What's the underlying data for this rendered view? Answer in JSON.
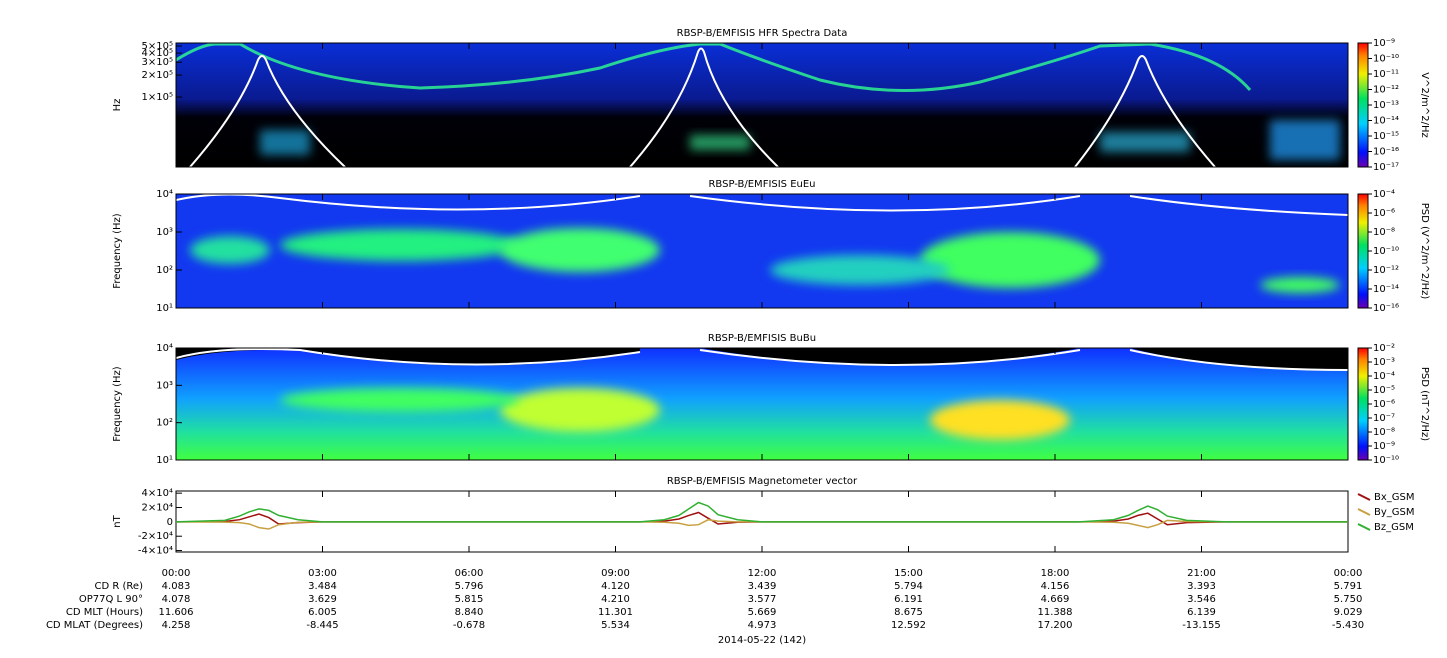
{
  "chart_data": [
    {
      "type": "spectrogram",
      "title": "RBSP-B/EMFISIS  HFR Spectra Data",
      "y_label": "Hz",
      "log_y": true,
      "ylim": [
        11000,
        550000
      ],
      "yticks": [
        {
          "value": 100000,
          "label": "1×10⁵"
        },
        {
          "value": 200000,
          "label": "2×10⁵"
        },
        {
          "value": 300000,
          "label": "3×10⁵"
        },
        {
          "value": 400000,
          "label": "4×10⁵"
        },
        {
          "value": 500000,
          "label": "5×10⁵"
        }
      ],
      "colorbar": {
        "label": "V^2/m^2/Hz",
        "lim": [
          1e-17,
          1e-09
        ],
        "ticks": [
          {
            "value": 1e-17,
            "label": "10⁻¹⁷"
          },
          {
            "value": 1e-16,
            "label": "10⁻¹⁶"
          },
          {
            "value": 1e-15,
            "label": "10⁻¹⁵"
          },
          {
            "value": 1e-14,
            "label": "10⁻¹⁴"
          },
          {
            "value": 1e-13,
            "label": "10⁻¹³"
          },
          {
            "value": 1e-12,
            "label": "10⁻¹²"
          },
          {
            "value": 1e-11,
            "label": "10⁻¹¹"
          },
          {
            "value": 1e-10,
            "label": "10⁻¹⁰"
          },
          {
            "value": 1e-09,
            "label": "10⁻⁹"
          }
        ]
      }
    },
    {
      "type": "spectrogram",
      "title": "RBSP-B/EMFISIS  EuEu",
      "y_label": "Frequency (Hz)",
      "log_y": true,
      "ylim": [
        10,
        10000
      ],
      "yticks": [
        {
          "value": 10,
          "label": "10¹"
        },
        {
          "value": 100,
          "label": "10²"
        },
        {
          "value": 1000,
          "label": "10³"
        },
        {
          "value": 10000,
          "label": "10⁴"
        }
      ],
      "colorbar": {
        "label": "PSD (V^2/m^2/Hz)",
        "lim": [
          1e-16,
          0.0001
        ],
        "ticks": [
          {
            "value": 1e-16,
            "label": "10⁻¹⁶"
          },
          {
            "value": 1e-14,
            "label": "10⁻¹⁴"
          },
          {
            "value": 1e-12,
            "label": "10⁻¹²"
          },
          {
            "value": 1e-10,
            "label": "10⁻¹⁰"
          },
          {
            "value": 1e-08,
            "label": "10⁻⁸"
          },
          {
            "value": 1e-06,
            "label": "10⁻⁶"
          },
          {
            "value": 0.0001,
            "label": "10⁻⁴"
          }
        ]
      }
    },
    {
      "type": "spectrogram",
      "title": "RBSP-B/EMFISIS  BuBu",
      "y_label": "Frequency (Hz)",
      "log_y": true,
      "ylim": [
        10,
        10000
      ],
      "yticks": [
        {
          "value": 10,
          "label": "10¹"
        },
        {
          "value": 100,
          "label": "10²"
        },
        {
          "value": 1000,
          "label": "10³"
        },
        {
          "value": 10000,
          "label": "10⁴"
        }
      ],
      "colorbar": {
        "label": "PSD (nT^2/Hz)",
        "lim": [
          1e-10,
          0.01
        ],
        "ticks": [
          {
            "value": 1e-10,
            "label": "10⁻¹⁰"
          },
          {
            "value": 1e-09,
            "label": "10⁻⁹"
          },
          {
            "value": 1e-08,
            "label": "10⁻⁸"
          },
          {
            "value": 1e-07,
            "label": "10⁻⁷"
          },
          {
            "value": 1e-06,
            "label": "10⁻⁶"
          },
          {
            "value": 1e-05,
            "label": "10⁻⁵"
          },
          {
            "value": 0.0001,
            "label": "10⁻⁴"
          },
          {
            "value": 0.001,
            "label": "10⁻³"
          },
          {
            "value": 0.01,
            "label": "10⁻²"
          }
        ]
      }
    },
    {
      "type": "line",
      "title": "RBSP-B/EMFISIS  Magnetometer vector",
      "y_label": "nT",
      "legend": "right",
      "xlim": [
        0,
        24
      ],
      "xticks": [
        {
          "value": 0,
          "label": "00:00"
        },
        {
          "value": 3,
          "label": "03:00"
        },
        {
          "value": 6,
          "label": "06:00"
        },
        {
          "value": 9,
          "label": "09:00"
        },
        {
          "value": 12,
          "label": "12:00"
        },
        {
          "value": 15,
          "label": "15:00"
        },
        {
          "value": 18,
          "label": "18:00"
        },
        {
          "value": 21,
          "label": "21:00"
        },
        {
          "value": 24,
          "label": "00:00"
        }
      ],
      "ylim": [
        -42000,
        43000
      ],
      "yticks": [
        {
          "value": 40000,
          "label": "4×10⁴"
        },
        {
          "value": 20000,
          "label": "2×10⁴"
        },
        0,
        {
          "value": -20000,
          "label": "-2×10⁴"
        },
        {
          "value": -40000,
          "label": "-4×10⁴"
        }
      ],
      "x": [
        0,
        1.0,
        1.3,
        1.5,
        1.7,
        1.9,
        2.1,
        2.5,
        3.0,
        9.5,
        10.0,
        10.3,
        10.5,
        10.7,
        10.9,
        11.1,
        11.5,
        12.0,
        18.5,
        19.2,
        19.5,
        19.7,
        19.9,
        20.1,
        20.3,
        20.7,
        21.5,
        24
      ],
      "series": [
        {
          "name": "Bx_GSM",
          "color": "#a01010",
          "values": [
            0,
            500,
            3000,
            7000,
            11000,
            6000,
            -3000,
            -1000,
            0,
            0,
            1000,
            4000,
            9000,
            13000,
            5000,
            -3000,
            -500,
            0,
            0,
            1000,
            4000,
            9000,
            12000,
            4000,
            -4000,
            -1000,
            0,
            0
          ]
        },
        {
          "name": "By_GSM",
          "color": "#c8a040",
          "values": [
            0,
            -300,
            -1000,
            -3000,
            -8000,
            -10000,
            -4000,
            -500,
            0,
            0,
            -500,
            -2000,
            -5000,
            -4000,
            3000,
            1000,
            0,
            0,
            0,
            -500,
            -2000,
            -5000,
            -8000,
            -4000,
            2000,
            500,
            0,
            0
          ]
        },
        {
          "name": "Bz_GSM",
          "color": "#30b030",
          "values": [
            0,
            2000,
            8000,
            14000,
            18000,
            16000,
            9000,
            3000,
            0,
            0,
            3000,
            9000,
            18000,
            27000,
            22000,
            10000,
            3000,
            0,
            0,
            3000,
            9000,
            16000,
            22000,
            17000,
            8000,
            2000,
            0,
            0
          ]
        }
      ]
    }
  ],
  "ephemeris": {
    "rows": [
      {
        "label": "CD R (Re)",
        "values": [
          "4.083",
          "3.484",
          "5.796",
          "4.120",
          "3.439",
          "5.794",
          "4.156",
          "3.393",
          "5.791"
        ]
      },
      {
        "label": "OP77Q L 90°",
        "values": [
          "4.078",
          "3.629",
          "5.815",
          "4.210",
          "3.577",
          "6.191",
          "4.669",
          "3.546",
          "5.750"
        ]
      },
      {
        "label": "CD MLT (Hours)",
        "values": [
          "11.606",
          "6.005",
          "8.840",
          "11.301",
          "5.669",
          "8.675",
          "11.388",
          "6.139",
          "9.029"
        ]
      },
      {
        "label": "CD MLAT (Degrees)",
        "values": [
          "4.258",
          "-8.445",
          "-0.678",
          "5.534",
          "4.973",
          "12.592",
          "17.200",
          "-13.155",
          "-5.430"
        ]
      }
    ],
    "date": "2014-05-22 (142)"
  }
}
